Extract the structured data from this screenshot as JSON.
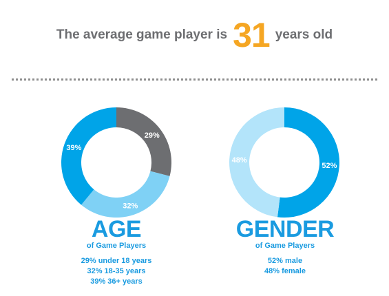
{
  "headline": {
    "prefix": "The average game player is",
    "number": "31",
    "suffix": "years old"
  },
  "colors": {
    "gray": "#6d6e71",
    "dark_blue": "#00a4e8",
    "light_blue": "#7fd1f5",
    "pale_blue": "#b3e4fa",
    "orange": "#f5a623",
    "text_blue": "#1a9be0"
  },
  "chart_data": [
    {
      "type": "pie",
      "variant": "donut",
      "categories": [
        "under 18 years",
        "18-35 years",
        "36+ years"
      ],
      "values": [
        29,
        32,
        39
      ],
      "slice_labels": [
        "29%",
        "32%",
        "39%"
      ],
      "slice_colors": [
        "#6d6e71",
        "#7fd1f5",
        "#00a4e8"
      ],
      "title": "AGE",
      "subtitle": "of Game Players",
      "legend": [
        "29% under 18 years",
        "32% 18-35 years",
        "39% 36+ years"
      ]
    },
    {
      "type": "pie",
      "variant": "donut",
      "categories": [
        "male",
        "female"
      ],
      "values": [
        52,
        48
      ],
      "slice_labels": [
        "52%",
        "48%"
      ],
      "slice_colors": [
        "#00a4e8",
        "#b3e4fa"
      ],
      "title": "GENDER",
      "subtitle": "of Game Players",
      "legend": [
        "52% male",
        "48% female"
      ]
    }
  ]
}
